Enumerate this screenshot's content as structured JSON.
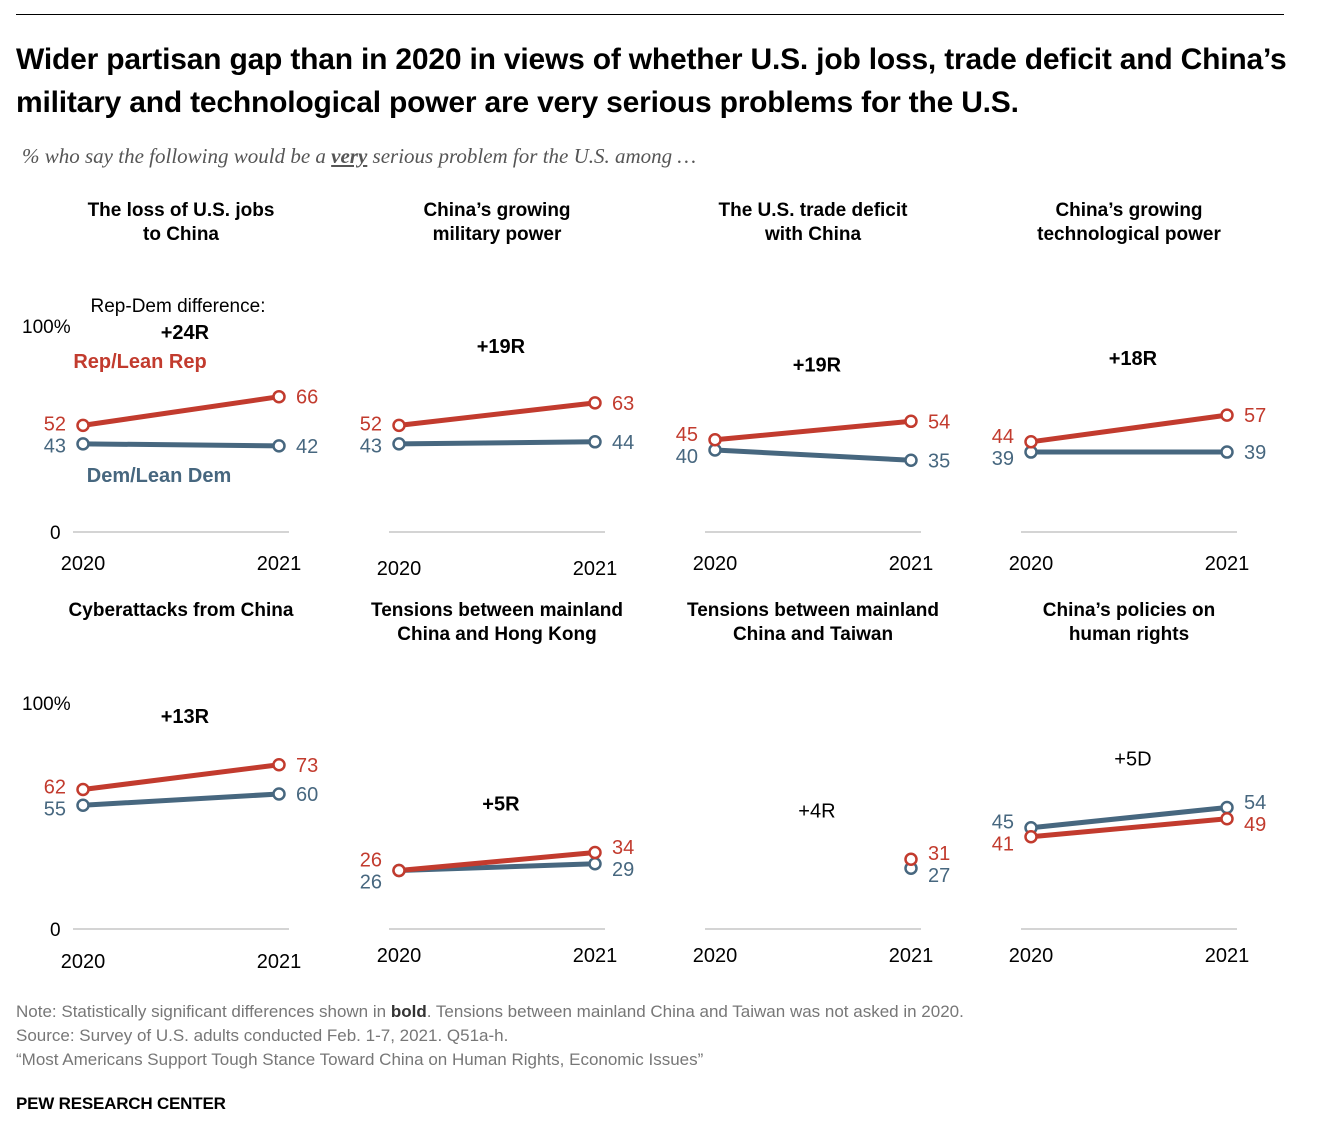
{
  "title": "Wider partisan gap than in 2020 in views of whether U.S. job loss, trade deficit and China’s military and technological power are very serious problems for the U.S.",
  "subtitle": {
    "before": "% who say the following would be a ",
    "emph": "very",
    "after": " serious problem for the U.S. among …"
  },
  "colors": {
    "rep": "#c23b2e",
    "dem": "#47677f",
    "axis": "#bbbbbb"
  },
  "legend": {
    "diff_label": "Rep-Dem difference:",
    "rep_label": "Rep/Lean Rep",
    "dem_label": "Dem/Lean Dem"
  },
  "axis_labels": {
    "top": "100%",
    "bottom": "0"
  },
  "chart_data": [
    {
      "type": "line",
      "title": [
        "The loss of U.S. jobs",
        "to China"
      ],
      "x": [
        "2020",
        "2021"
      ],
      "ylim": [
        0,
        100
      ],
      "series": [
        {
          "name": "Rep/Lean Rep",
          "values": [
            52,
            66
          ]
        },
        {
          "name": "Dem/Lean Dem",
          "values": [
            43,
            42
          ]
        }
      ],
      "difference": "+24R",
      "significant": true
    },
    {
      "type": "line",
      "title": [
        "China’s growing",
        "military power"
      ],
      "x": [
        "2020",
        "2021"
      ],
      "ylim": [
        0,
        100
      ],
      "series": [
        {
          "name": "Rep/Lean Rep",
          "values": [
            52,
            63
          ]
        },
        {
          "name": "Dem/Lean Dem",
          "values": [
            43,
            44
          ]
        }
      ],
      "difference": "+19R",
      "significant": true
    },
    {
      "type": "line",
      "title": [
        "The U.S. trade deficit",
        "with China"
      ],
      "x": [
        "2020",
        "2021"
      ],
      "ylim": [
        0,
        100
      ],
      "series": [
        {
          "name": "Rep/Lean Rep",
          "values": [
            45,
            54
          ]
        },
        {
          "name": "Dem/Lean Dem",
          "values": [
            40,
            35
          ]
        }
      ],
      "difference": "+19R",
      "significant": true
    },
    {
      "type": "line",
      "title": [
        "China’s growing",
        "technological power"
      ],
      "x": [
        "2020",
        "2021"
      ],
      "ylim": [
        0,
        100
      ],
      "series": [
        {
          "name": "Rep/Lean Rep",
          "values": [
            44,
            57
          ]
        },
        {
          "name": "Dem/Lean Dem",
          "values": [
            39,
            39
          ]
        }
      ],
      "difference": "+18R",
      "significant": true
    },
    {
      "type": "line",
      "title": [
        "Cyberattacks from China"
      ],
      "x": [
        "2020",
        "2021"
      ],
      "ylim": [
        0,
        100
      ],
      "series": [
        {
          "name": "Rep/Lean Rep",
          "values": [
            62,
            73
          ]
        },
        {
          "name": "Dem/Lean Dem",
          "values": [
            55,
            60
          ]
        }
      ],
      "difference": "+13R",
      "significant": true
    },
    {
      "type": "line",
      "title": [
        "Tensions between mainland",
        "China and Hong Kong"
      ],
      "x": [
        "2020",
        "2021"
      ],
      "ylim": [
        0,
        100
      ],
      "series": [
        {
          "name": "Rep/Lean Rep",
          "values": [
            26,
            34
          ]
        },
        {
          "name": "Dem/Lean Dem",
          "values": [
            26,
            29
          ]
        }
      ],
      "difference": "+5R",
      "significant": true
    },
    {
      "type": "line",
      "title": [
        "Tensions between mainland",
        "China and Taiwan"
      ],
      "x": [
        "2020",
        "2021"
      ],
      "ylim": [
        0,
        100
      ],
      "series": [
        {
          "name": "Rep/Lean Rep",
          "values": [
            null,
            31
          ]
        },
        {
          "name": "Dem/Lean Dem",
          "values": [
            null,
            27
          ]
        }
      ],
      "difference": "+4R",
      "significant": false
    },
    {
      "type": "line",
      "title": [
        "China’s policies on",
        "human rights"
      ],
      "x": [
        "2020",
        "2021"
      ],
      "ylim": [
        0,
        100
      ],
      "series": [
        {
          "name": "Rep/Lean Rep",
          "values": [
            41,
            49
          ]
        },
        {
          "name": "Dem/Lean Dem",
          "values": [
            45,
            54
          ]
        }
      ],
      "difference": "+5D",
      "significant": false
    }
  ],
  "footer": {
    "note_before": "Note: Statistically significant differences shown in ",
    "note_bold": "bold",
    "note_after": ". Tensions between mainland China and Taiwan was not asked in 2020.",
    "source": "Source: Survey of U.S. adults conducted Feb. 1-7, 2021. Q51a-h.",
    "report": "“Most Americans Support Tough Stance Toward China on Human Rights, Economic Issues”",
    "org": "PEW RESEARCH CENTER"
  }
}
